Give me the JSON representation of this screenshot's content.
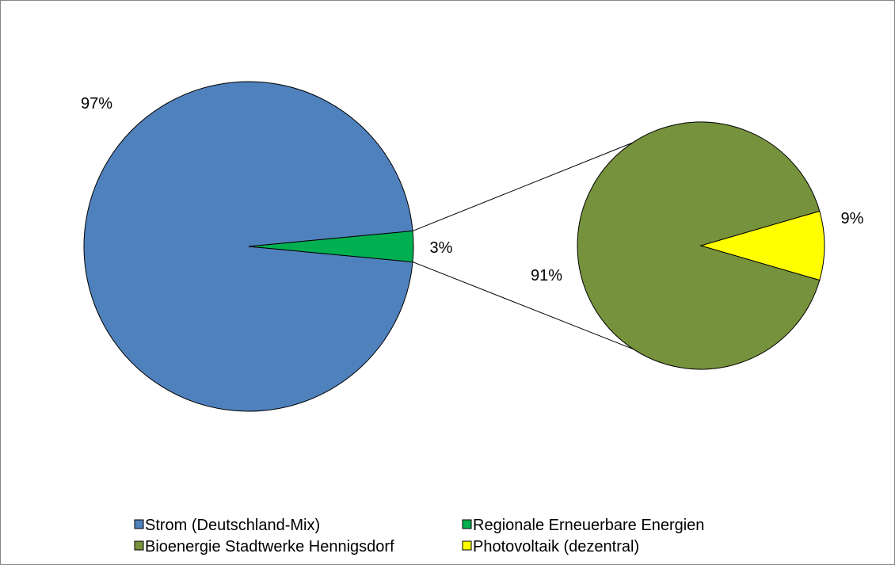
{
  "chart_data": {
    "type": "pie",
    "subtype": "pie-of-pie",
    "title": "",
    "primary_pie": {
      "slices": [
        {
          "name": "Strom (Deutschland-Mix)",
          "value": 97,
          "label": "97%",
          "color": "#4F81BD"
        },
        {
          "name": "Regionale Erneuerbare Energien",
          "value": 3,
          "label": "3%",
          "color": "#00B050"
        }
      ]
    },
    "secondary_pie": {
      "breakdown_of": "Regionale Erneuerbare Energien",
      "slices": [
        {
          "name": "Bioenergie Stadtwerke Hennigsdorf",
          "value": 91,
          "label": "91%",
          "color": "#76923C"
        },
        {
          "name": "Photovoltaik (dezentral)",
          "value": 9,
          "label": "9%",
          "color": "#FFFF00"
        }
      ]
    },
    "legend": {
      "placement": "bottom",
      "entries": [
        {
          "label": "Strom (Deutschland-Mix)",
          "color": "#4F81BD"
        },
        {
          "label": "Regionale Erneuerbare Energien",
          "color": "#00B050"
        },
        {
          "label": "Bioenergie Stadtwerke Hennigsdorf",
          "color": "#76923C"
        },
        {
          "label": "Photovoltaik (dezentral)",
          "color": "#FFFF00"
        }
      ]
    }
  }
}
